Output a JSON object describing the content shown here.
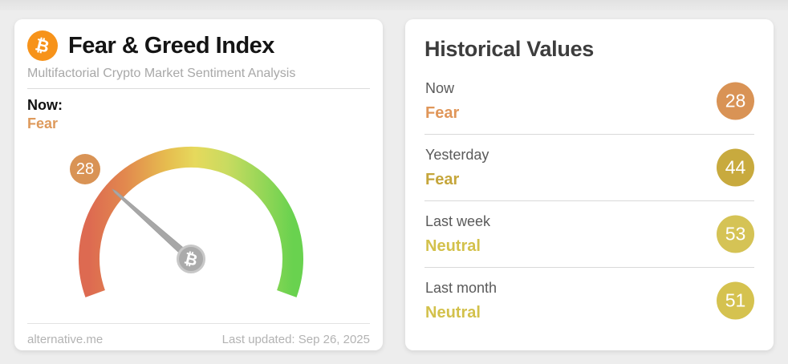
{
  "icons": {
    "bitcoin": "₿"
  },
  "left_card": {
    "title": "Fear & Greed Index",
    "subtitle": "Multifactorial Crypto Market Sentiment Analysis",
    "now_label": "Now:",
    "now_value": "Fear",
    "now_color": "#de9a5c",
    "footer_source": "alternative.me",
    "footer_updated": "Last updated: Sep 26, 2025"
  },
  "gauge": {
    "value": 28,
    "value_label": "28",
    "min": 0,
    "max": 100,
    "classification": "Fear",
    "badge_color": "#d99355",
    "arc_colors": [
      "#dd6a51",
      "#e2894e",
      "#e6bc4f",
      "#e6d95c",
      "#c8db60",
      "#69d24f"
    ],
    "needle_color": "#a7a7a7"
  },
  "right_card": {
    "title": "Historical Values",
    "rows": [
      {
        "label": "Now",
        "classification": "Fear",
        "value": "28",
        "value_color": "#e09659",
        "badge_color": "#d99355"
      },
      {
        "label": "Yesterday",
        "classification": "Fear",
        "value": "44",
        "value_color": "#c5a63b",
        "badge_color": "#c8aa3e"
      },
      {
        "label": "Last week",
        "classification": "Neutral",
        "value": "53",
        "value_color": "#d3c14b",
        "badge_color": "#d5c355"
      },
      {
        "label": "Last month",
        "classification": "Neutral",
        "value": "51",
        "value_color": "#d3c14b",
        "badge_color": "#d5c24f"
      }
    ]
  },
  "chart_data": {
    "type": "gauge",
    "title": "Fear & Greed Index",
    "value": 28,
    "min": 0,
    "max": 100,
    "classification": "Fear",
    "historical": [
      {
        "label": "Now",
        "value": 28,
        "classification": "Fear"
      },
      {
        "label": "Yesterday",
        "value": 44,
        "classification": "Fear"
      },
      {
        "label": "Last week",
        "value": 53,
        "classification": "Neutral"
      },
      {
        "label": "Last month",
        "value": 51,
        "classification": "Neutral"
      }
    ]
  }
}
